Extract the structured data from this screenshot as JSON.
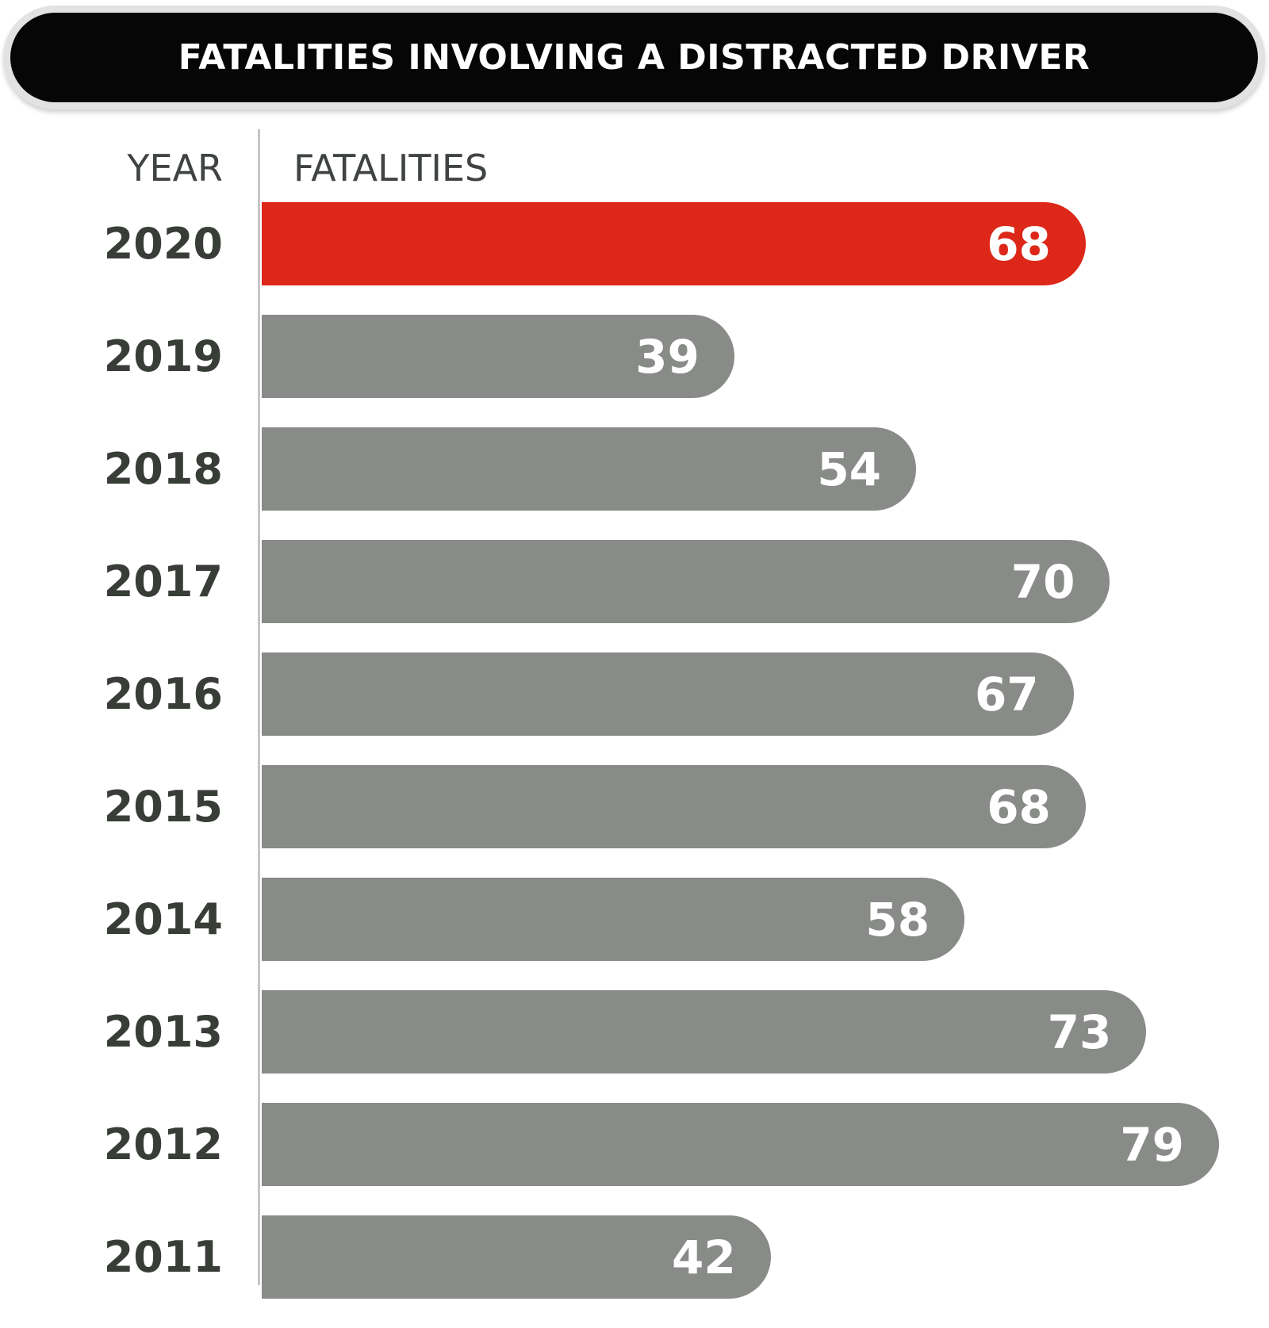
{
  "chart_data": {
    "type": "bar",
    "orientation": "horizontal",
    "title": "FATALITIES INVOLVING A DISTRACTED DRIVER",
    "col_headers": [
      "YEAR",
      "FATALITIES"
    ],
    "categories": [
      "2020",
      "2019",
      "2018",
      "2017",
      "2016",
      "2015",
      "2014",
      "2013",
      "2012",
      "2011"
    ],
    "values": [
      68,
      39,
      54,
      70,
      67,
      68,
      58,
      73,
      79,
      42
    ],
    "ylabel": "YEAR",
    "xlabel": "FATALITIES",
    "xmax": 79,
    "grid": false,
    "legend": false,
    "highlight_index": 0,
    "colors": {
      "highlight_bar": "#dc2719",
      "default_bar": "#888b87",
      "value_text": "#ffffff",
      "year_text": "#393d38",
      "header_text": "#3f4342",
      "axis_line": "#c5c5c5",
      "banner_bg": "#060606",
      "banner_ring": "#e2e2e2",
      "banner_text": "#ffffff"
    }
  }
}
